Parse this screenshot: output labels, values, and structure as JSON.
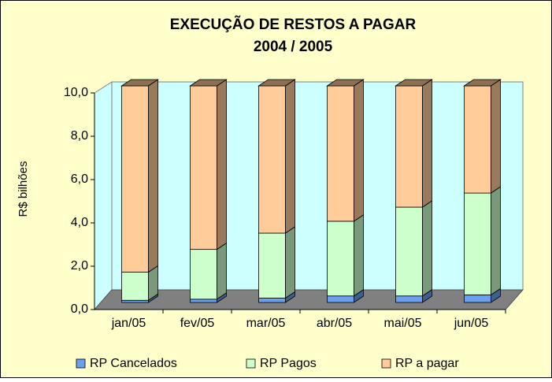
{
  "chart_data": {
    "type": "bar3d_stacked",
    "title": "EXECUÇÃO DE RESTOS A PAGAR",
    "subtitle": "2004 / 2005",
    "y_label": "R$ bilhões",
    "categories": [
      "jan/05",
      "fev/05",
      "mar/05",
      "abr/05",
      "mai/05",
      "jun/05"
    ],
    "series": [
      {
        "name": "RP Cancelados",
        "color": "#6b9ff0",
        "values": [
          0.1,
          0.15,
          0.2,
          0.3,
          0.3,
          0.35
        ]
      },
      {
        "name": "RP Pagos",
        "color": "#ccffcc",
        "values": [
          1.3,
          2.3,
          3.0,
          3.45,
          4.1,
          4.7
        ]
      },
      {
        "name": "RP a pagar",
        "color": "#ffcc99",
        "values": [
          8.6,
          7.55,
          6.8,
          6.25,
          5.6,
          4.95
        ]
      }
    ],
    "ylim": [
      0,
      10
    ],
    "yticks": [
      {
        "value": 0,
        "label": "0,0"
      },
      {
        "value": 2,
        "label": "2,0"
      },
      {
        "value": 4,
        "label": "4,0"
      },
      {
        "value": 6,
        "label": "6,0"
      },
      {
        "value": 8,
        "label": "8,0"
      },
      {
        "value": 10,
        "label": "10,0"
      }
    ],
    "legend": "bottom"
  }
}
